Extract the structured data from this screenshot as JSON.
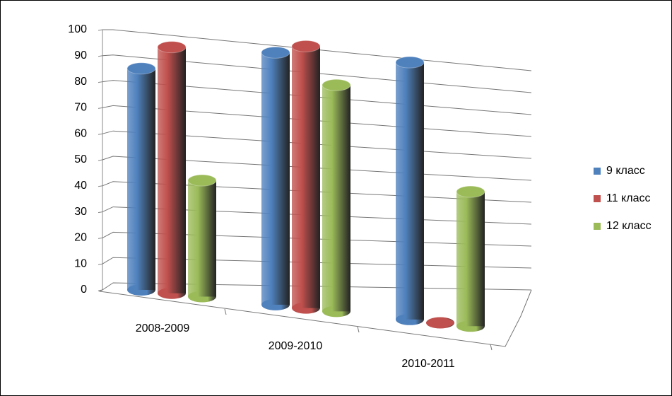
{
  "chart_data": {
    "type": "bar3d",
    "categories": [
      "2008-2009",
      "2009-2010",
      "2010-2011"
    ],
    "series": [
      {
        "name": "9 класс",
        "color": "#4f81bd",
        "values": [
          87,
          96,
          95
        ]
      },
      {
        "name": "11 класс",
        "color": "#c0504d",
        "values": [
          96,
          99,
          0
        ]
      },
      {
        "name": "12 класс",
        "color": "#9bbb59",
        "values": [
          45,
          85,
          49
        ]
      }
    ],
    "ylim": [
      0,
      100
    ],
    "yticks": [
      0,
      10,
      20,
      30,
      40,
      50,
      60,
      70,
      80,
      90,
      100
    ],
    "grid": true,
    "legend": "right"
  }
}
